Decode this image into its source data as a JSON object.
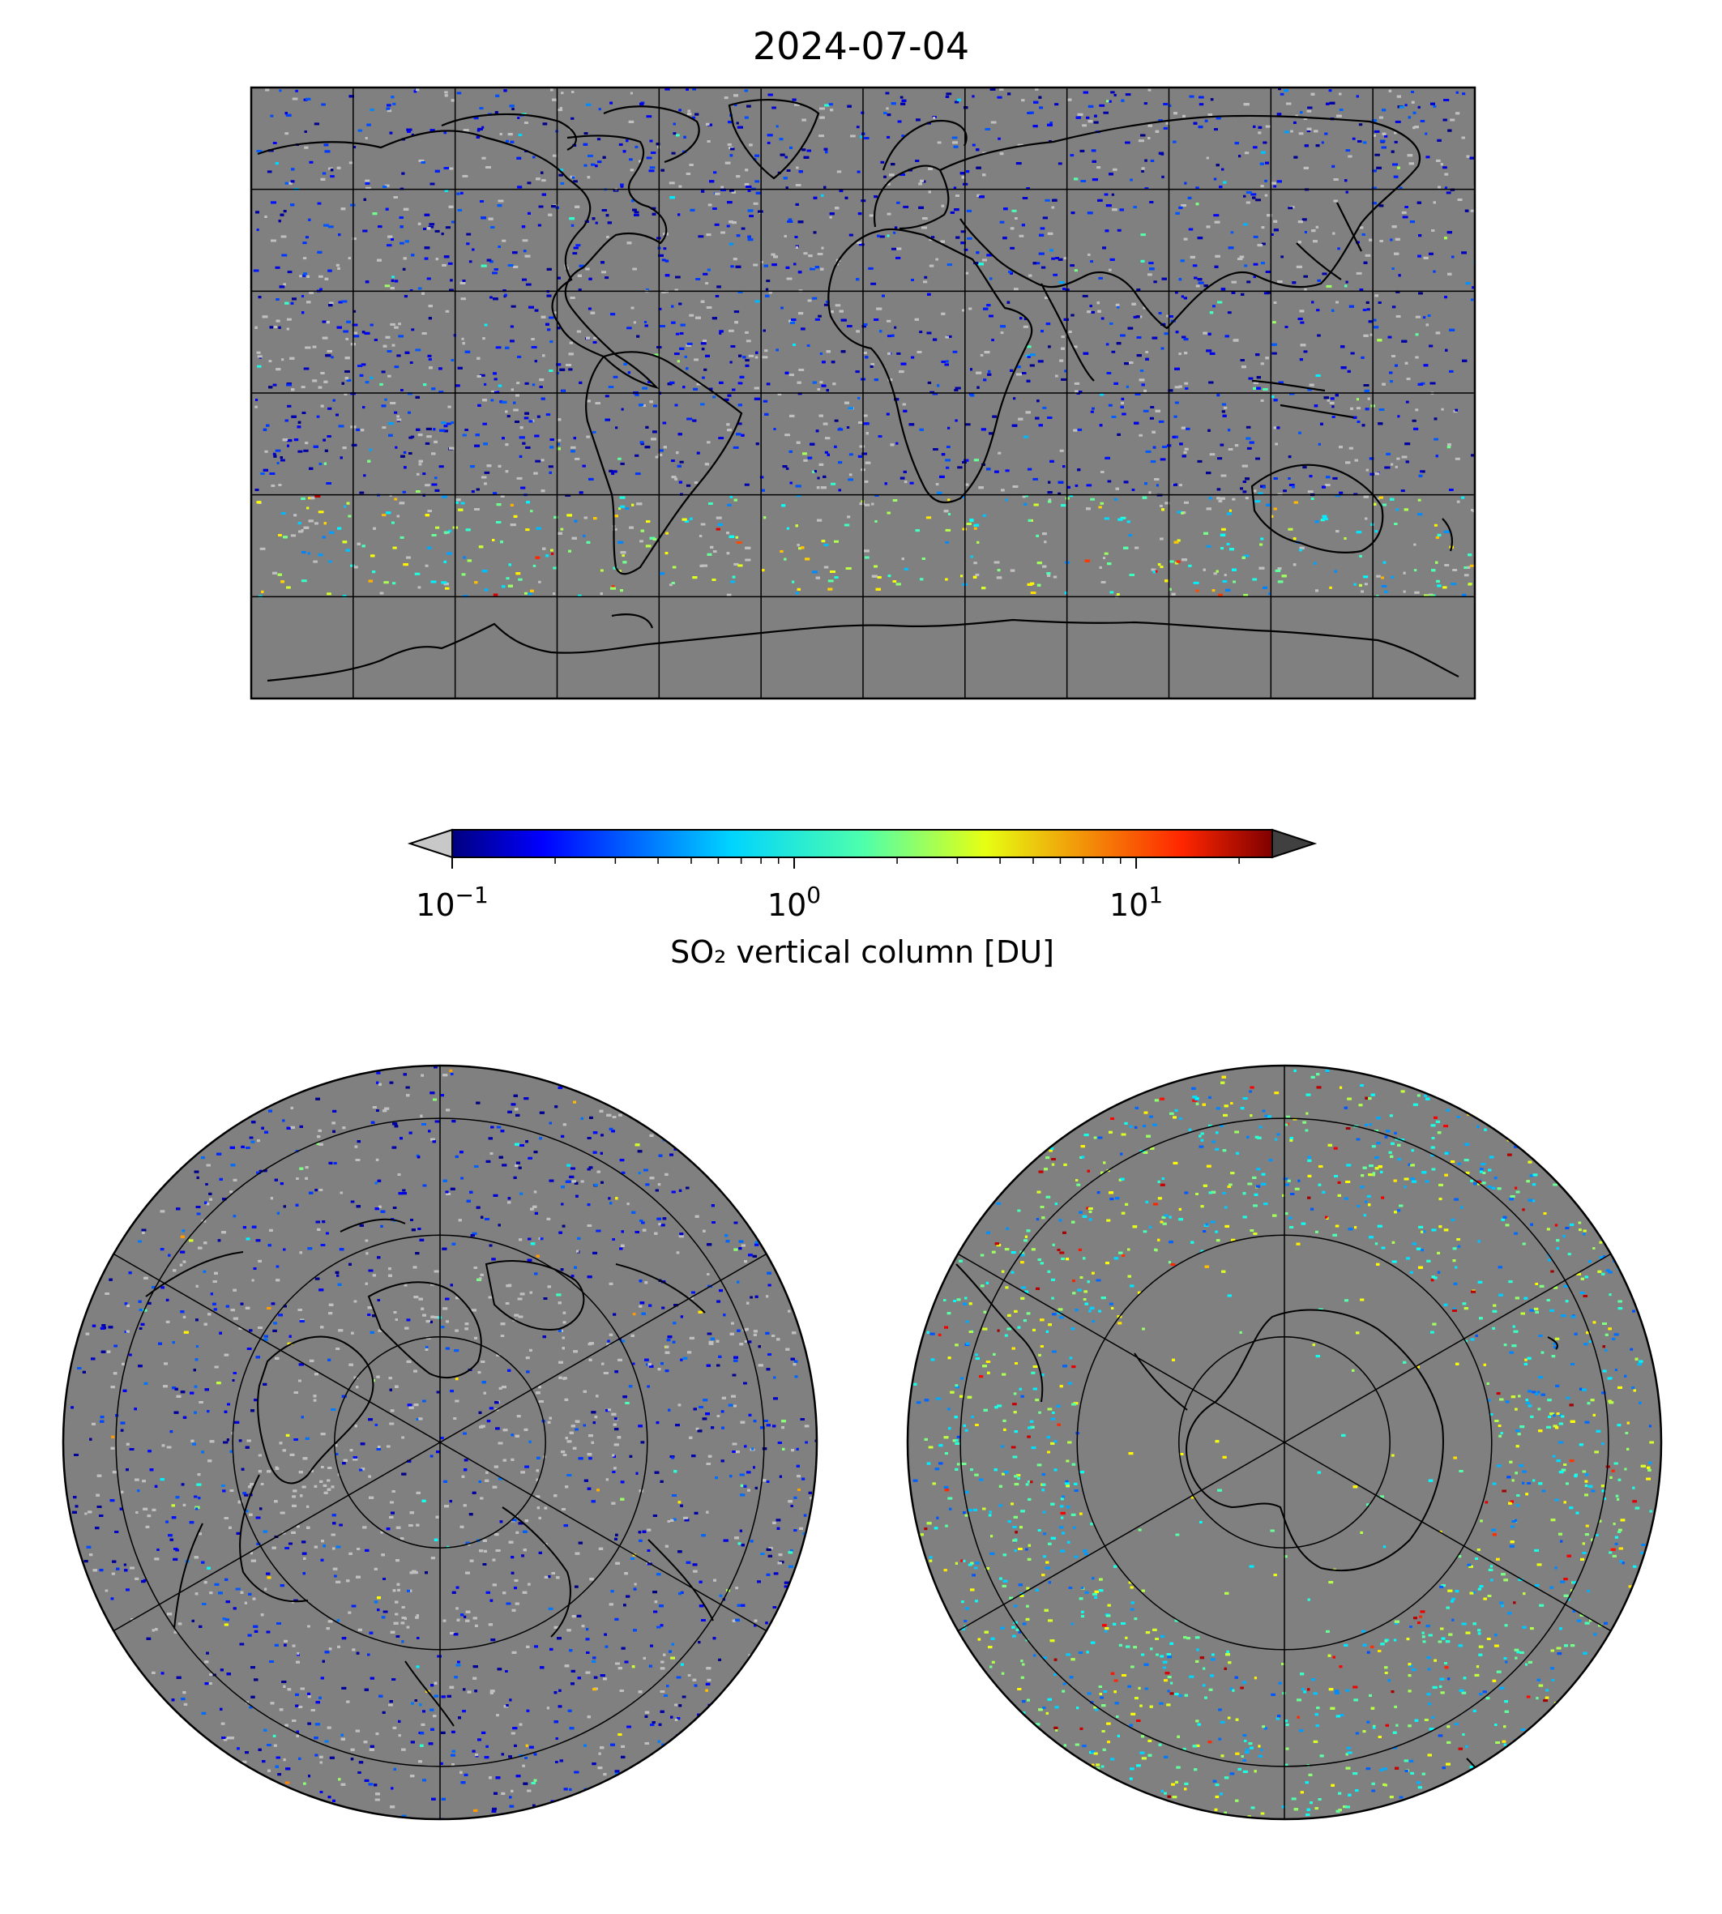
{
  "title": "2024-07-04",
  "colorbar": {
    "label": "SO₂ vertical column [DU]",
    "scale": "log",
    "range": [
      0.1,
      25
    ],
    "ticks": [
      {
        "base": "10",
        "exp": "−1",
        "value": 0.1
      },
      {
        "base": "10",
        "exp": "0",
        "value": 1
      },
      {
        "base": "10",
        "exp": "1",
        "value": 10
      }
    ],
    "colormap": "jet",
    "under_color": "#c8c8c8",
    "over_color": "#404040",
    "extend": "both"
  },
  "maps": {
    "background_color": "#808080",
    "global": {
      "projection": "plate-carree",
      "grid_lon_step_deg": 30,
      "grid_lat_step_deg": 30
    },
    "north_polar": {
      "projection": "north-polar-stereographic",
      "grid_lat_circles_deg": [
        0,
        30,
        60
      ],
      "meridians_deg": [
        0,
        60,
        120,
        180,
        240,
        300
      ]
    },
    "south_polar": {
      "projection": "south-polar-stereographic",
      "grid_lat_circles_deg": [
        0,
        -30,
        -60
      ],
      "meridians_deg": [
        0,
        60,
        120,
        180,
        240,
        300
      ]
    }
  },
  "colors": {
    "coastline": "#000000",
    "grid": "#000000"
  }
}
